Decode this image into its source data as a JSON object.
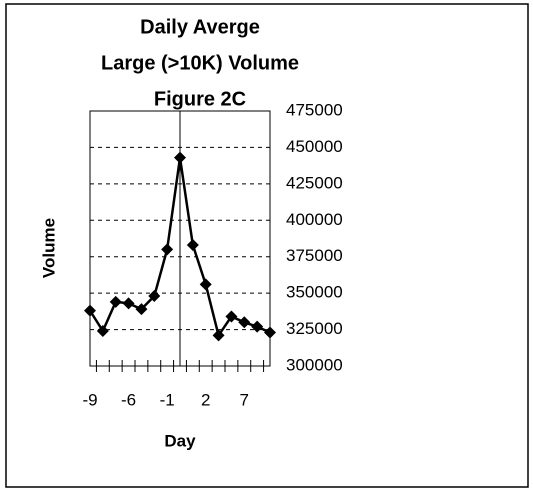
{
  "chart_data": {
    "type": "line",
    "title": [
      "Daily Averge",
      "Large (>10K) Volume",
      "Figure 2C"
    ],
    "x_label": "Day",
    "y_label": "Volume",
    "categories": [
      "-9",
      null,
      null,
      "-6",
      null,
      null,
      "-1",
      null,
      null,
      "2",
      null,
      null,
      "7",
      null,
      null
    ],
    "series": [
      {
        "name": "Volume",
        "color": "#000000",
        "values": [
          338000,
          324000,
          344000,
          343000,
          339000,
          348000,
          380000,
          443000,
          383000,
          356000,
          321000,
          334000,
          330000,
          327000,
          323000
        ]
      }
    ],
    "ylim": [
      300000,
      475000
    ],
    "yticks": [
      300000,
      325000,
      350000,
      375000,
      400000,
      425000,
      450000,
      475000
    ],
    "grid": true
  }
}
